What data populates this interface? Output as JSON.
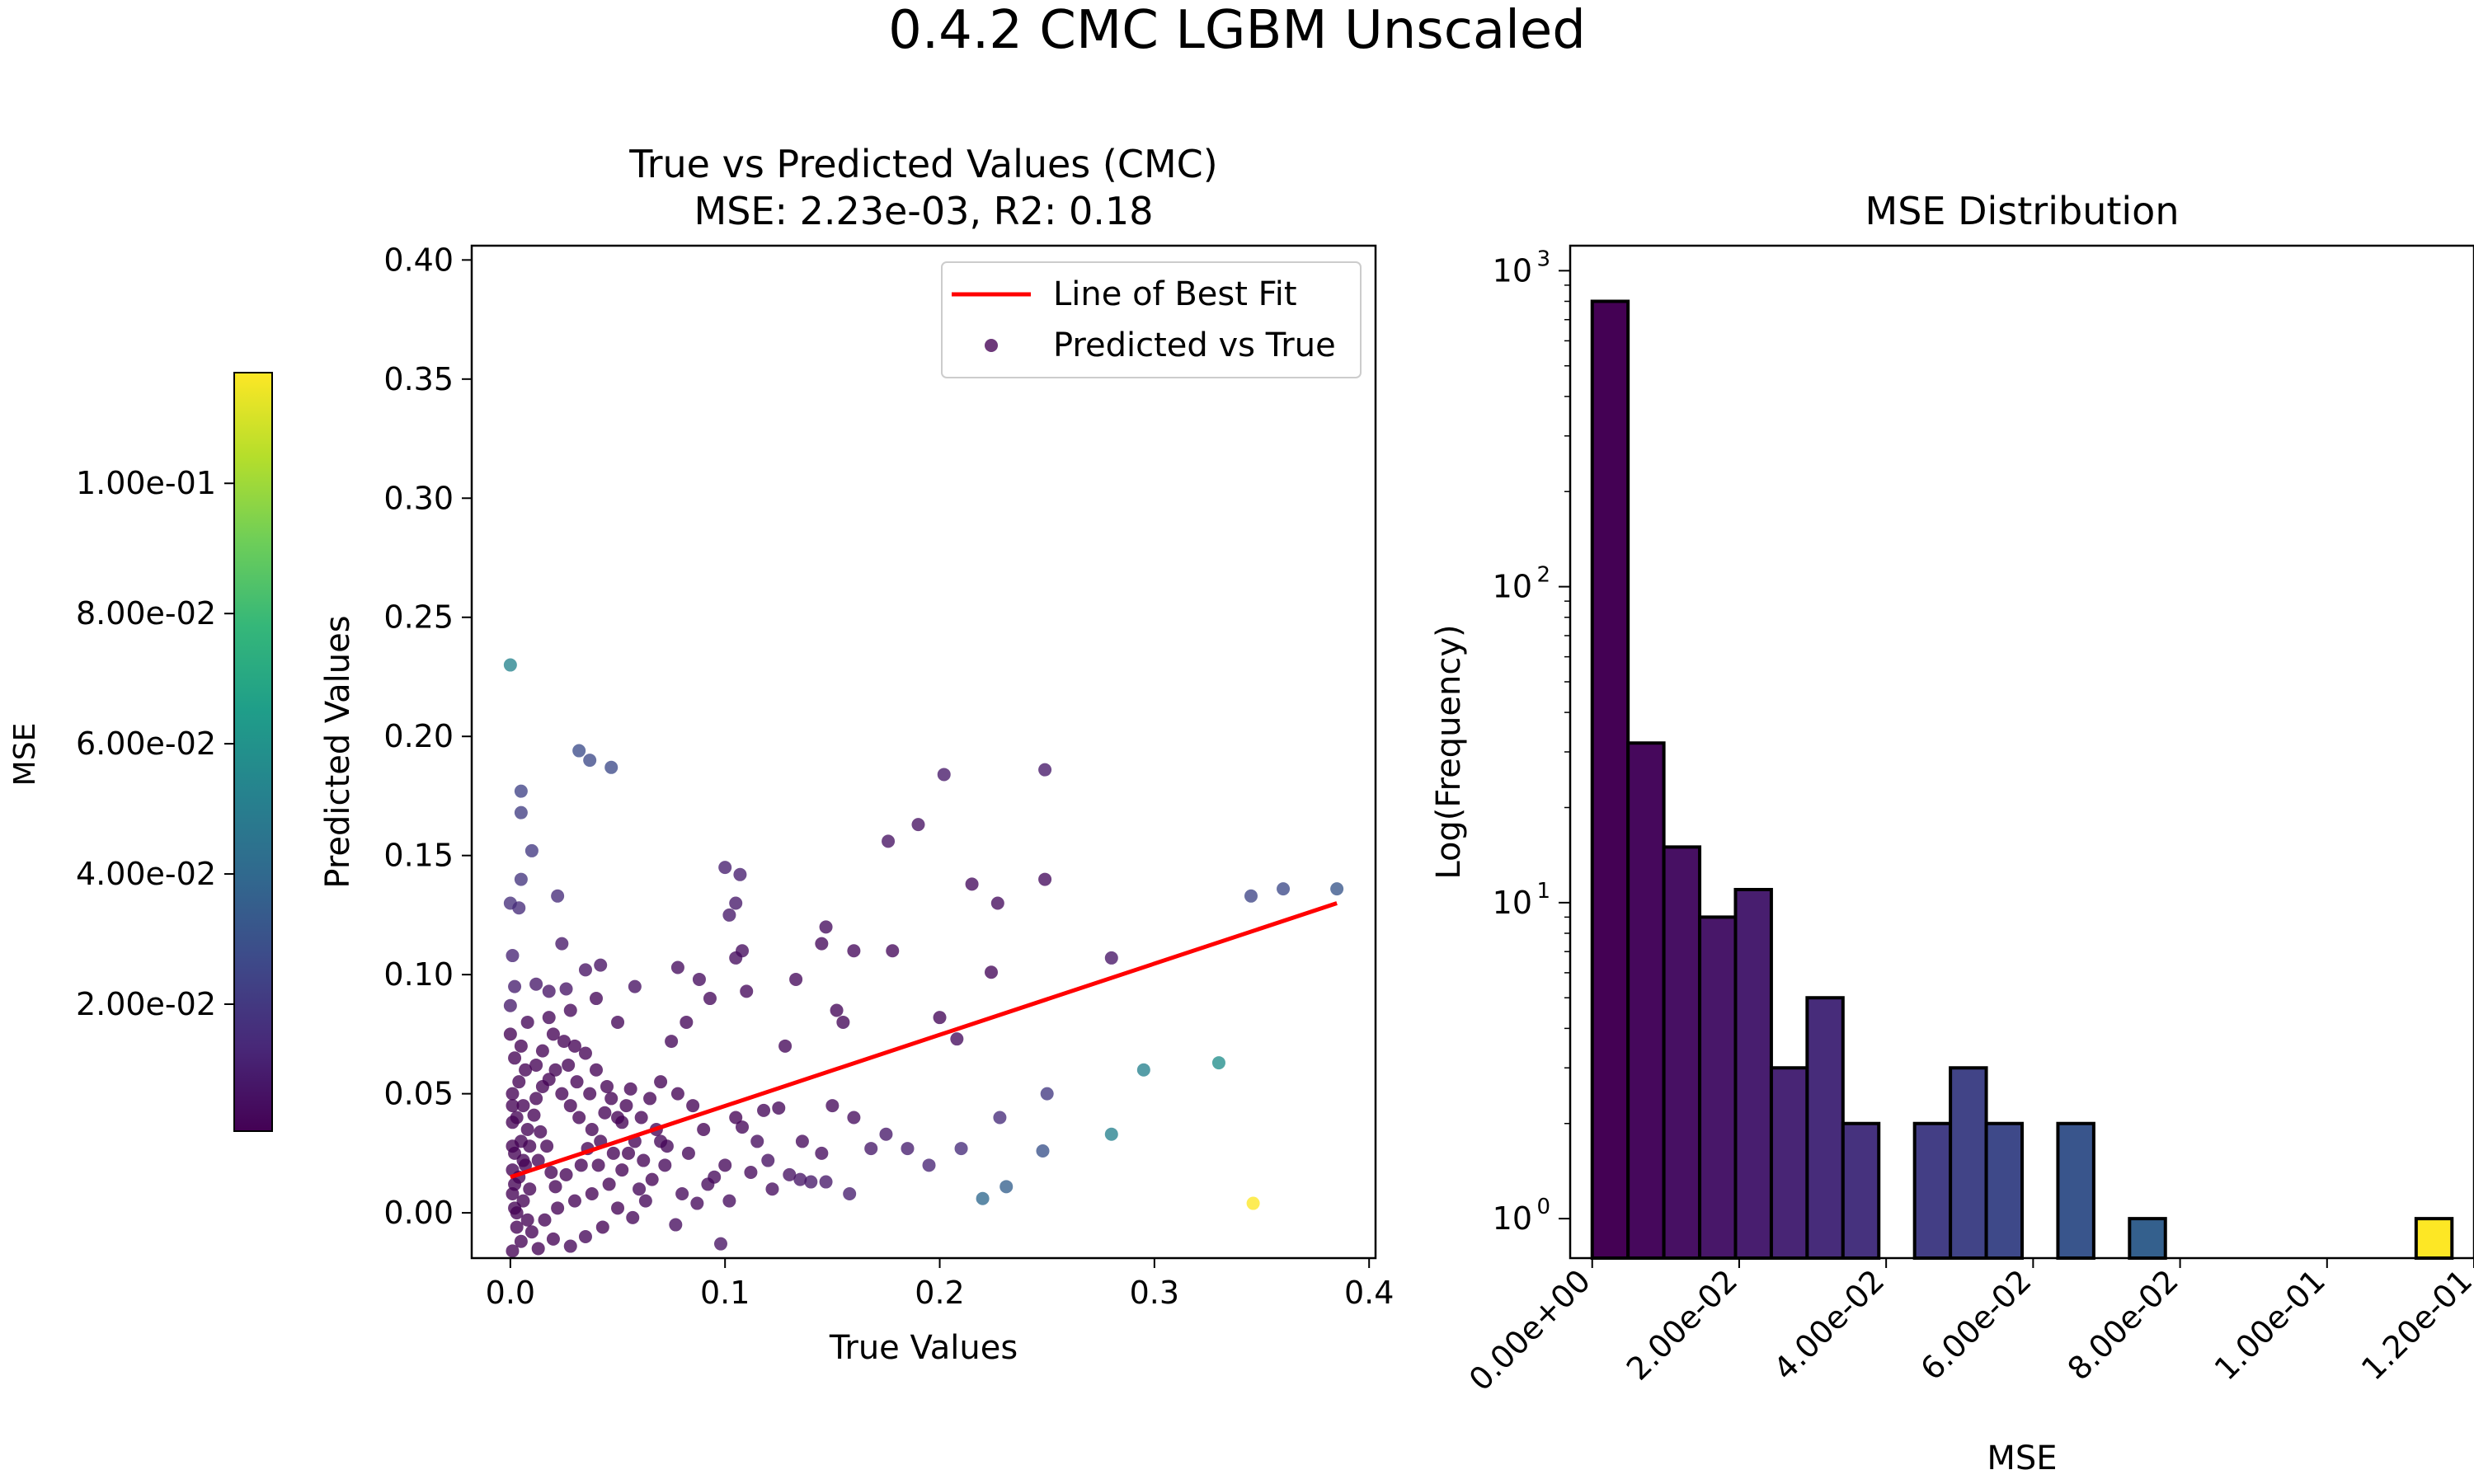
{
  "figure_title": "0.4.2 CMC LGBM Unscaled",
  "colors": {
    "fit_line": "#ff0000",
    "axes": "#000000",
    "viridis": [
      "#440154",
      "#482878",
      "#3e4989",
      "#31688e",
      "#26828e",
      "#1f9e89",
      "#35b779",
      "#6ece58",
      "#b5de2b",
      "#fde725"
    ]
  },
  "chart_data": [
    {
      "type": "scatter",
      "title": "True vs Predicted Values (CMC)",
      "subtitle": "MSE: 2.23e-03, R2: 0.18",
      "xlabel": "True Values",
      "ylabel": "Predicted Values",
      "xlim": [
        -0.018,
        0.403
      ],
      "ylim": [
        -0.019,
        0.406
      ],
      "xticks": [
        0.0,
        0.1,
        0.2,
        0.3,
        0.4
      ],
      "xtick_labels": [
        "0.0",
        "0.1",
        "0.2",
        "0.3",
        "0.4"
      ],
      "yticks": [
        0.0,
        0.05,
        0.1,
        0.15,
        0.2,
        0.25,
        0.3,
        0.35,
        0.4
      ],
      "ytick_labels": [
        "0.00",
        "0.05",
        "0.10",
        "0.15",
        "0.20",
        "0.25",
        "0.30",
        "0.35",
        "0.40"
      ],
      "legend": {
        "placement": "top-right",
        "entries": [
          "Line of Best Fit",
          "Predicted vs True"
        ]
      },
      "line_of_best_fit": {
        "x": [
          0.0,
          0.385
        ],
        "y": [
          0.015,
          0.13
        ]
      },
      "colorbar": {
        "label": "MSE",
        "range": [
          0.0005,
          0.117
        ],
        "ticks": [
          0.02,
          0.04,
          0.06,
          0.08,
          0.1
        ],
        "tick_labels": [
          "2.00e-02",
          "4.00e-02",
          "6.00e-02",
          "8.00e-02",
          "1.00e-01"
        ]
      },
      "points": [
        [
          0.0,
          0.23,
          0.053
        ],
        [
          0.032,
          0.194,
          0.028
        ],
        [
          0.037,
          0.19,
          0.027
        ],
        [
          0.047,
          0.187,
          0.027
        ],
        [
          0.005,
          0.177,
          0.024
        ],
        [
          0.005,
          0.168,
          0.022
        ],
        [
          0.01,
          0.152,
          0.02
        ],
        [
          0.005,
          0.14,
          0.018
        ],
        [
          0.0,
          0.13,
          0.016
        ],
        [
          0.004,
          0.128,
          0.015
        ],
        [
          0.022,
          0.133,
          0.015
        ],
        [
          0.1,
          0.145,
          0.01
        ],
        [
          0.107,
          0.142,
          0.01
        ],
        [
          0.105,
          0.13,
          0.008
        ],
        [
          0.102,
          0.125,
          0.008
        ],
        [
          0.001,
          0.108,
          0.012
        ],
        [
          0.002,
          0.095,
          0.01
        ],
        [
          0.0,
          0.087,
          0.009
        ],
        [
          0.012,
          0.096,
          0.008
        ],
        [
          0.018,
          0.093,
          0.007
        ],
        [
          0.026,
          0.094,
          0.007
        ],
        [
          0.035,
          0.102,
          0.006
        ],
        [
          0.024,
          0.113,
          0.008
        ],
        [
          0.042,
          0.104,
          0.006
        ],
        [
          0.058,
          0.095,
          0.005
        ],
        [
          0.078,
          0.103,
          0.004
        ],
        [
          0.088,
          0.098,
          0.004
        ],
        [
          0.093,
          0.09,
          0.003
        ],
        [
          0.105,
          0.107,
          0.004
        ],
        [
          0.108,
          0.11,
          0.004
        ],
        [
          0.11,
          0.093,
          0.003
        ],
        [
          0.075,
          0.072,
          0.002
        ],
        [
          0.082,
          0.08,
          0.002
        ],
        [
          0.128,
          0.07,
          0.002
        ],
        [
          0.133,
          0.098,
          0.003
        ],
        [
          0.147,
          0.12,
          0.004
        ],
        [
          0.145,
          0.113,
          0.003
        ],
        [
          0.16,
          0.11,
          0.003
        ],
        [
          0.178,
          0.11,
          0.003
        ],
        [
          0.155,
          0.08,
          0.002
        ],
        [
          0.152,
          0.085,
          0.002
        ],
        [
          0.176,
          0.156,
          0.006
        ],
        [
          0.19,
          0.163,
          0.006
        ],
        [
          0.202,
          0.184,
          0.008
        ],
        [
          0.215,
          0.138,
          0.004
        ],
        [
          0.227,
          0.13,
          0.004
        ],
        [
          0.249,
          0.186,
          0.008
        ],
        [
          0.249,
          0.14,
          0.004
        ],
        [
          0.224,
          0.101,
          0.002
        ],
        [
          0.2,
          0.082,
          0.002
        ],
        [
          0.208,
          0.073,
          0.004
        ],
        [
          0.28,
          0.107,
          0.007
        ],
        [
          0.345,
          0.133,
          0.025
        ],
        [
          0.36,
          0.136,
          0.027
        ],
        [
          0.385,
          0.136,
          0.032
        ],
        [
          0.33,
          0.063,
          0.058
        ],
        [
          0.295,
          0.06,
          0.052
        ],
        [
          0.28,
          0.033,
          0.052
        ],
        [
          0.25,
          0.05,
          0.02
        ],
        [
          0.248,
          0.026,
          0.03
        ],
        [
          0.231,
          0.011,
          0.036
        ],
        [
          0.22,
          0.006,
          0.04
        ],
        [
          0.346,
          0.004,
          0.117
        ],
        [
          0.228,
          0.04,
          0.015
        ],
        [
          0.21,
          0.027,
          0.015
        ],
        [
          0.195,
          0.02,
          0.012
        ],
        [
          0.185,
          0.027,
          0.01
        ],
        [
          0.175,
          0.033,
          0.008
        ],
        [
          0.168,
          0.027,
          0.008
        ],
        [
          0.158,
          0.008,
          0.01
        ],
        [
          0.147,
          0.013,
          0.008
        ],
        [
          0.14,
          0.013,
          0.008
        ],
        [
          0.135,
          0.014,
          0.007
        ],
        [
          0.13,
          0.016,
          0.006
        ],
        [
          0.12,
          0.022,
          0.005
        ],
        [
          0.115,
          0.03,
          0.004
        ],
        [
          0.118,
          0.043,
          0.002
        ],
        [
          0.125,
          0.044,
          0.002
        ],
        [
          0.108,
          0.036,
          0.002
        ],
        [
          0.1,
          0.02,
          0.002
        ],
        [
          0.095,
          0.015,
          0.003
        ],
        [
          0.09,
          0.035,
          0.001
        ],
        [
          0.085,
          0.045,
          0.001
        ],
        [
          0.078,
          0.05,
          0.001
        ],
        [
          0.07,
          0.055,
          0.001
        ],
        [
          0.065,
          0.048,
          0.001
        ],
        [
          0.068,
          0.035,
          0.001
        ],
        [
          0.072,
          0.02,
          0.002
        ],
        [
          0.08,
          0.008,
          0.003
        ],
        [
          0.087,
          0.004,
          0.003
        ],
        [
          0.077,
          -0.005,
          0.004
        ],
        [
          0.098,
          -0.013,
          0.006
        ],
        [
          0.06,
          0.01,
          0.002
        ],
        [
          0.055,
          0.025,
          0.001
        ],
        [
          0.05,
          0.04,
          0.001
        ],
        [
          0.045,
          0.053,
          0.001
        ],
        [
          0.04,
          0.06,
          0.001
        ],
        [
          0.035,
          0.067,
          0.001
        ],
        [
          0.03,
          0.07,
          0.001
        ],
        [
          0.025,
          0.072,
          0.001
        ],
        [
          0.02,
          0.075,
          0.001
        ],
        [
          0.015,
          0.068,
          0.001
        ],
        [
          0.012,
          0.062,
          0.001
        ],
        [
          0.018,
          0.056,
          0.001
        ],
        [
          0.024,
          0.05,
          0.001
        ],
        [
          0.028,
          0.045,
          0.001
        ],
        [
          0.032,
          0.04,
          0.001
        ],
        [
          0.038,
          0.035,
          0.001
        ],
        [
          0.042,
          0.03,
          0.001
        ],
        [
          0.048,
          0.025,
          0.001
        ],
        [
          0.052,
          0.018,
          0.001
        ],
        [
          0.046,
          0.012,
          0.001
        ],
        [
          0.038,
          0.008,
          0.001
        ],
        [
          0.03,
          0.005,
          0.001
        ],
        [
          0.022,
          0.002,
          0.001
        ],
        [
          0.016,
          -0.003,
          0.001
        ],
        [
          0.01,
          -0.008,
          0.001
        ],
        [
          0.005,
          -0.012,
          0.001
        ],
        [
          0.001,
          -0.016,
          0.001
        ],
        [
          0.003,
          0.0,
          0.001
        ],
        [
          0.006,
          0.005,
          0.001
        ],
        [
          0.009,
          0.01,
          0.001
        ],
        [
          0.004,
          0.015,
          0.001
        ],
        [
          0.007,
          0.02,
          0.001
        ],
        [
          0.002,
          0.025,
          0.001
        ],
        [
          0.005,
          0.03,
          0.001
        ],
        [
          0.008,
          0.035,
          0.001
        ],
        [
          0.003,
          0.04,
          0.001
        ],
        [
          0.006,
          0.045,
          0.001
        ],
        [
          0.001,
          0.05,
          0.001
        ],
        [
          0.004,
          0.055,
          0.001
        ],
        [
          0.007,
          0.06,
          0.001
        ],
        [
          0.002,
          0.065,
          0.001
        ],
        [
          0.005,
          0.07,
          0.001
        ],
        [
          0.0,
          0.075,
          0.001
        ],
        [
          0.011,
          0.041,
          0.001
        ],
        [
          0.014,
          0.034,
          0.001
        ],
        [
          0.017,
          0.028,
          0.001
        ],
        [
          0.013,
          0.022,
          0.001
        ],
        [
          0.019,
          0.017,
          0.001
        ],
        [
          0.021,
          0.011,
          0.001
        ],
        [
          0.026,
          0.016,
          0.001
        ],
        [
          0.033,
          0.02,
          0.001
        ],
        [
          0.036,
          0.027,
          0.001
        ],
        [
          0.041,
          0.02,
          0.001
        ],
        [
          0.044,
          0.042,
          0.001
        ],
        [
          0.054,
          0.045,
          0.001
        ],
        [
          0.058,
          0.03,
          0.001
        ],
        [
          0.062,
          0.022,
          0.001
        ],
        [
          0.066,
          0.014,
          0.001
        ],
        [
          0.063,
          0.005,
          0.002
        ],
        [
          0.057,
          -0.002,
          0.002
        ],
        [
          0.05,
          0.002,
          0.001
        ],
        [
          0.043,
          -0.006,
          0.001
        ],
        [
          0.035,
          -0.01,
          0.002
        ],
        [
          0.028,
          -0.014,
          0.002
        ],
        [
          0.02,
          -0.011,
          0.001
        ],
        [
          0.013,
          -0.015,
          0.001
        ],
        [
          0.008,
          -0.003,
          0.001
        ],
        [
          0.001,
          0.008,
          0.001
        ],
        [
          0.001,
          0.018,
          0.001
        ],
        [
          0.001,
          0.028,
          0.001
        ],
        [
          0.001,
          0.038,
          0.001
        ],
        [
          0.001,
          0.045,
          0.001
        ],
        [
          0.002,
          0.012,
          0.001
        ],
        [
          0.002,
          0.002,
          0.001
        ],
        [
          0.003,
          -0.006,
          0.001
        ],
        [
          0.006,
          0.022,
          0.001
        ],
        [
          0.009,
          0.028,
          0.001
        ],
        [
          0.012,
          0.048,
          0.001
        ],
        [
          0.015,
          0.053,
          0.001
        ],
        [
          0.021,
          0.06,
          0.001
        ],
        [
          0.027,
          0.062,
          0.001
        ],
        [
          0.031,
          0.055,
          0.001
        ],
        [
          0.037,
          0.05,
          0.001
        ],
        [
          0.047,
          0.048,
          0.001
        ],
        [
          0.052,
          0.038,
          0.001
        ],
        [
          0.056,
          0.052,
          0.001
        ],
        [
          0.061,
          0.04,
          0.001
        ],
        [
          0.018,
          0.082,
          0.002
        ],
        [
          0.028,
          0.085,
          0.002
        ],
        [
          0.04,
          0.09,
          0.002
        ],
        [
          0.05,
          0.08,
          0.002
        ],
        [
          0.008,
          0.08,
          0.002
        ],
        [
          0.07,
          0.03,
          0.002
        ],
        [
          0.073,
          0.028,
          0.002
        ],
        [
          0.083,
          0.025,
          0.002
        ],
        [
          0.092,
          0.012,
          0.003
        ],
        [
          0.102,
          0.005,
          0.004
        ],
        [
          0.112,
          0.017,
          0.003
        ],
        [
          0.122,
          0.01,
          0.004
        ],
        [
          0.105,
          0.04,
          0.001
        ],
        [
          0.136,
          0.03,
          0.003
        ],
        [
          0.145,
          0.025,
          0.004
        ],
        [
          0.15,
          0.045,
          0.003
        ],
        [
          0.16,
          0.04,
          0.004
        ]
      ]
    },
    {
      "type": "bar",
      "title": "MSE Distribution",
      "xlabel": "MSE",
      "ylabel": "Log(Frequency)",
      "yscale": "log",
      "ylim": [
        0.75,
        1200
      ],
      "xlim": [
        -0.003,
        0.12
      ],
      "bin_width": 0.004875,
      "bin_start": 0.0,
      "values": [
        800,
        32,
        15,
        9,
        11,
        3,
        5,
        2,
        0,
        2,
        3,
        2,
        0,
        2,
        0,
        1,
        0,
        0,
        0,
        0,
        0,
        0,
        0,
        1
      ],
      "bar_colors": [
        "#440154",
        "#46085c",
        "#471063",
        "#481769",
        "#481e6f",
        "#482575",
        "#472c7a",
        "#46327e",
        "#453882",
        "#433e85",
        "#414487",
        "#3e4989",
        "#3c508b",
        "#39558c",
        "#375b8d",
        "#34608d",
        "#31668e",
        "#2f6b8e",
        "#2d718e",
        "#2a768e",
        "#287c8e",
        "#26818e",
        "#24868e",
        "#fde725"
      ],
      "xticks": [
        0.0,
        0.02,
        0.04,
        0.06,
        0.08,
        0.1,
        0.12
      ],
      "xtick_labels": [
        "0.00e+00",
        "2.00e-02",
        "4.00e-02",
        "6.00e-02",
        "8.00e-02",
        "1.00e-01",
        "1.20e-01"
      ],
      "yticks": [
        1,
        10,
        100,
        1000
      ],
      "ytick_labels": [
        [
          "10",
          "0"
        ],
        [
          "10",
          "1"
        ],
        [
          "10",
          "2"
        ],
        [
          "10",
          "3"
        ]
      ]
    }
  ]
}
